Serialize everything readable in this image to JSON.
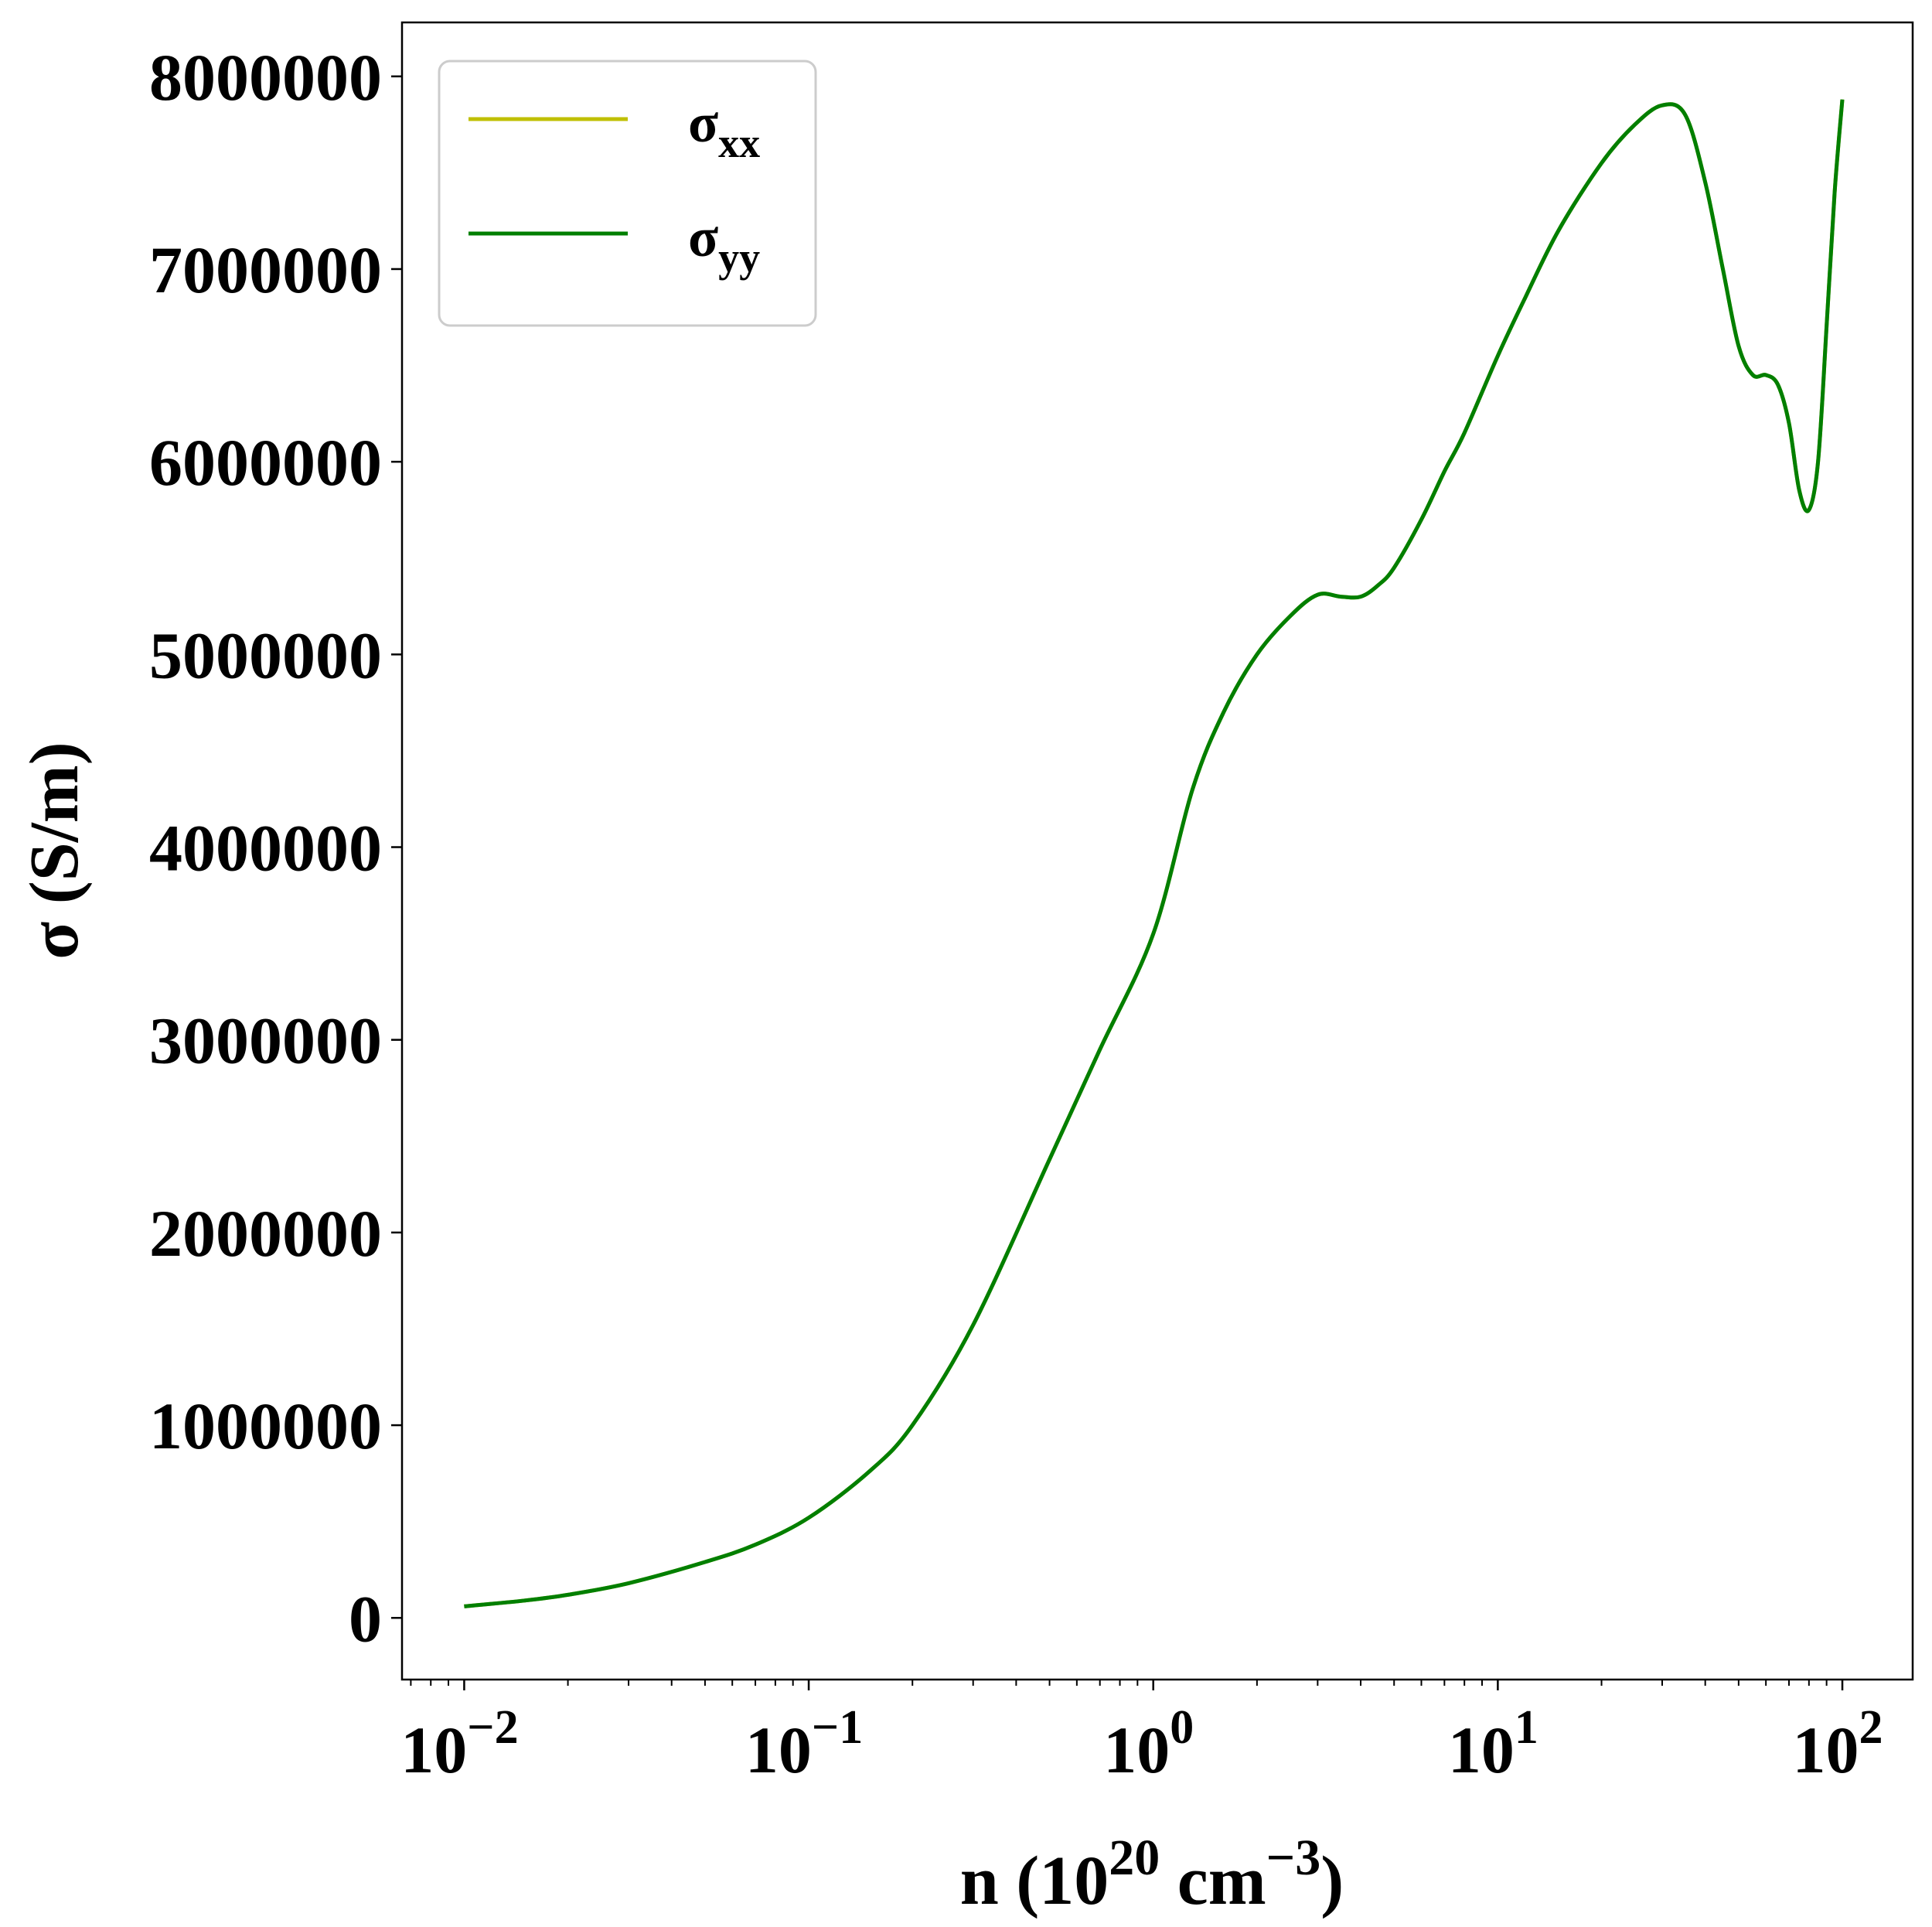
{
  "chart_data": {
    "type": "line",
    "xlabel": "n (10",
    "xlabel_sup": "20",
    "xlabel_mid": " cm",
    "xlabel_sup2": "−3",
    "xlabel_end": ")",
    "ylabel": "σ (S/m)",
    "xscale": "log",
    "xlim": [
      0.0066,
      160
    ],
    "ylim": [
      -320000,
      8280000
    ],
    "grid": false,
    "legend_position": "upper-left",
    "x_ticks": [
      {
        "value": 0.01,
        "base": "10",
        "exp": "−2"
      },
      {
        "value": 0.1,
        "base": "10",
        "exp": "−1"
      },
      {
        "value": 1,
        "base": "10",
        "exp": "0"
      },
      {
        "value": 10,
        "base": "10",
        "exp": "1"
      },
      {
        "value": 100,
        "base": "10",
        "exp": "2"
      }
    ],
    "y_ticks": [
      {
        "value": 0,
        "label": "0"
      },
      {
        "value": 1000000,
        "label": "1000000"
      },
      {
        "value": 2000000,
        "label": "2000000"
      },
      {
        "value": 3000000,
        "label": "3000000"
      },
      {
        "value": 4000000,
        "label": "4000000"
      },
      {
        "value": 5000000,
        "label": "5000000"
      },
      {
        "value": 6000000,
        "label": "6000000"
      },
      {
        "value": 7000000,
        "label": "7000000"
      },
      {
        "value": 8000000,
        "label": "8000000"
      }
    ],
    "series": [
      {
        "name": "σ",
        "name_sub": "xx",
        "color": "#bfbf00",
        "x": [
          0.01,
          0.015,
          0.02,
          0.03,
          0.05,
          0.07,
          0.1,
          0.15,
          0.2,
          0.3,
          0.5,
          0.7,
          1.0,
          1.3,
          1.6,
          2.0,
          2.5,
          3.0,
          3.5,
          4.0,
          4.5,
          5.0,
          6.0,
          7.0,
          8.0,
          10,
          12,
          15,
          20,
          25,
          30,
          35,
          40,
          45,
          50,
          55,
          60,
          65,
          70,
          75,
          80,
          85,
          90,
          95,
          100
        ],
        "y": [
          60000,
          90000,
          120000,
          180000,
          290000,
          380000,
          520000,
          760000,
          1000000,
          1520000,
          2380000,
          2950000,
          3550000,
          4300000,
          4700000,
          5000000,
          5200000,
          5310000,
          5300000,
          5300000,
          5360000,
          5450000,
          5700000,
          5950000,
          6150000,
          6550000,
          6850000,
          7200000,
          7550000,
          7750000,
          7850000,
          7800000,
          7450000,
          7000000,
          6600000,
          6450000,
          6450000,
          6400000,
          6200000,
          5850000,
          5750000,
          6000000,
          6700000,
          7400000,
          7880000
        ]
      },
      {
        "name": "σ",
        "name_sub": "yy",
        "color": "#007f00",
        "x": [
          0.01,
          0.015,
          0.02,
          0.03,
          0.05,
          0.07,
          0.1,
          0.15,
          0.2,
          0.3,
          0.5,
          0.7,
          1.0,
          1.3,
          1.6,
          2.0,
          2.5,
          3.0,
          3.5,
          4.0,
          4.5,
          5.0,
          6.0,
          7.0,
          8.0,
          10,
          12,
          15,
          20,
          25,
          30,
          35,
          40,
          45,
          50,
          55,
          60,
          65,
          70,
          75,
          80,
          85,
          90,
          95,
          100
        ],
        "y": [
          60000,
          90000,
          120000,
          180000,
          290000,
          380000,
          520000,
          760000,
          1000000,
          1520000,
          2380000,
          2950000,
          3550000,
          4300000,
          4700000,
          5000000,
          5200000,
          5310000,
          5300000,
          5300000,
          5360000,
          5450000,
          5700000,
          5950000,
          6150000,
          6550000,
          6850000,
          7200000,
          7550000,
          7750000,
          7850000,
          7800000,
          7450000,
          7000000,
          6600000,
          6450000,
          6450000,
          6400000,
          6200000,
          5850000,
          5750000,
          6000000,
          6700000,
          7400000,
          7880000
        ]
      }
    ]
  }
}
